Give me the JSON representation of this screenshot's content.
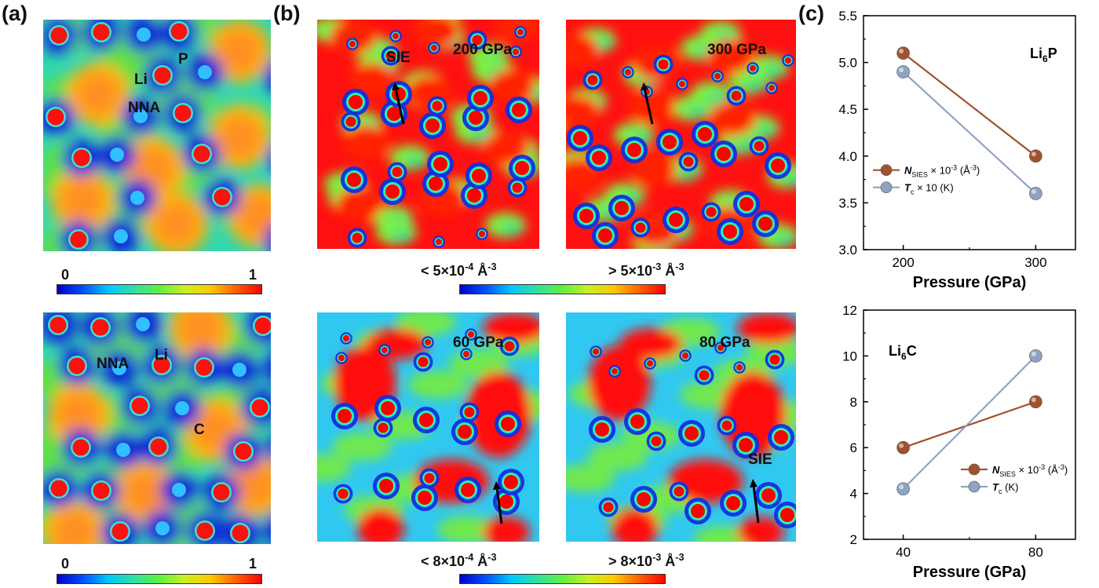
{
  "panels": {
    "a": "(a)",
    "b": "(b)",
    "c": "(c)"
  },
  "panel_a": {
    "top": {
      "labels": [
        "P",
        "Li",
        "NNA"
      ]
    },
    "bottom": {
      "labels": [
        "NNA",
        "Li",
        "C"
      ]
    },
    "colorbar": {
      "min": "0",
      "max": "1"
    }
  },
  "panel_b": {
    "top_left": {
      "pressure": "200 GPa",
      "tag": "SIE"
    },
    "top_right": {
      "pressure": "300 GPa"
    },
    "bottom_left": {
      "pressure": "60 GPa"
    },
    "bottom_right": {
      "pressure": "80 GPa",
      "tag": "SIE"
    },
    "colorbar_top": {
      "low": "< 5×10",
      "low_exp": "-4",
      "high": "> 5×10",
      "high_exp": "-3",
      "unit": "Å",
      "unit_exp": "-3"
    },
    "colorbar_bottom": {
      "low": "< 8×10",
      "low_exp": "-4",
      "high": "> 8×10",
      "high_exp": "-3",
      "unit": "Å",
      "unit_exp": "-3"
    }
  },
  "colors": {
    "jet": [
      "#0000c8",
      "#0050ff",
      "#00c8ff",
      "#30e0a0",
      "#60f040",
      "#c8f020",
      "#ffc800",
      "#ff6000",
      "#ff0000"
    ],
    "brown": "#a0522d",
    "steel": "#8fa3c4"
  },
  "chart_data": [
    {
      "type": "line",
      "compound": "Li",
      "compound_sub": "6",
      "compound_elem": "P",
      "x": [
        200,
        300
      ],
      "xticks": [
        "200",
        "300"
      ],
      "xlabel": "Pressure (GPa)",
      "ylim": [
        3.0,
        5.5
      ],
      "yticks": [
        "3.0",
        "3.5",
        "4.0",
        "4.5",
        "5.0",
        "5.5"
      ],
      "series": [
        {
          "name": "N_SIES × 10^-3 (Å^-3)",
          "values": [
            5.1,
            4.0
          ],
          "color": "#a0522d"
        },
        {
          "name": "T_c × 10 (K)",
          "values": [
            4.9,
            3.6
          ],
          "color": "#8fa3c4"
        }
      ],
      "legend": [
        {
          "main": "N",
          "sub": "SIES",
          "rest": " × 10",
          "sup": "-3",
          "unit": " (Å",
          "unit_sup": "-3",
          "close": ")"
        },
        {
          "main": "T",
          "sub": "c",
          "rest": " × 10 (K)",
          "sup": "",
          "unit": "",
          "unit_sup": "",
          "close": ""
        }
      ]
    },
    {
      "type": "line",
      "compound": "Li",
      "compound_sub": "6",
      "compound_elem": "C",
      "x": [
        40,
        80
      ],
      "xticks": [
        "40",
        "80"
      ],
      "xlabel": "Pressure (GPa)",
      "ylim": [
        2,
        12
      ],
      "yticks": [
        "2",
        "4",
        "6",
        "8",
        "10",
        "12"
      ],
      "series": [
        {
          "name": "N_SIES × 10^-3 (Å^-3)",
          "values": [
            6,
            8
          ],
          "color": "#a0522d"
        },
        {
          "name": "T_c (K)",
          "values": [
            4.2,
            10
          ],
          "color": "#8fa3c4"
        }
      ],
      "legend": [
        {
          "main": "N",
          "sub": "SIES",
          "rest": " × 10",
          "sup": "-3",
          "unit": " (Å",
          "unit_sup": "-3",
          "close": ")"
        },
        {
          "main": "T",
          "sub": "c",
          "rest": " (K)",
          "sup": "",
          "unit": "",
          "unit_sup": "",
          "close": ""
        }
      ]
    }
  ]
}
